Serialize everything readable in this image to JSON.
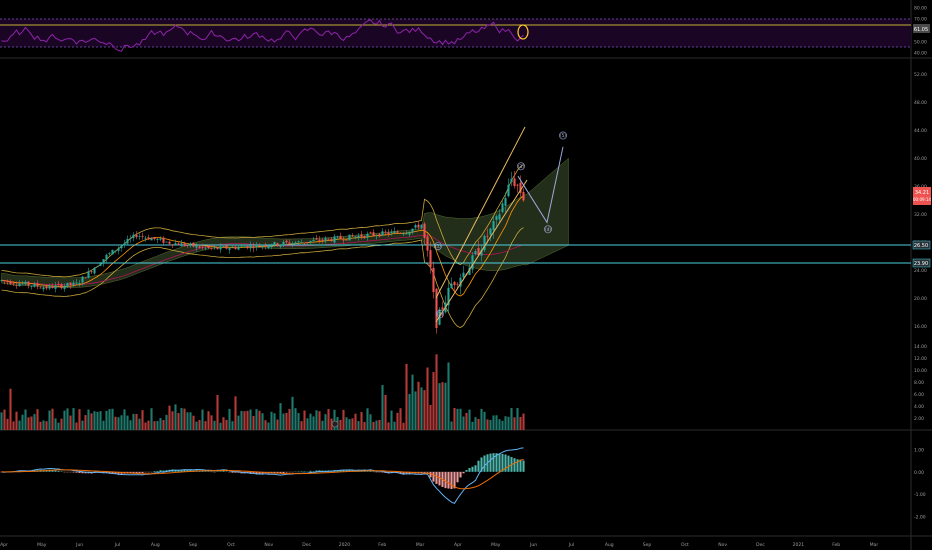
{
  "chart_data": {
    "type": "candlestick",
    "title": "",
    "colors": {
      "background": "#000000",
      "up": "#26a69a",
      "down": "#ef5350",
      "bollinger": "#c8a53a",
      "ichimoku_cloud": "#3a4a2a",
      "ma_fast": "#ff9800",
      "ma_slow": "#880e4f",
      "horizontal_line": "#4dd0e1",
      "rsi": "#8e24aa",
      "rsi_band": "#2a0a3a",
      "macd_line": "#64b5f6",
      "signal_line": "#ef6c00",
      "wave_path": "#9fa8da",
      "channel": "#e8b860",
      "scale_bg": "#000000",
      "last_price_bg": "#ef5350"
    },
    "x_labels": [
      "Apr",
      "May",
      "Jun",
      "Jul",
      "Aug",
      "Sep",
      "Oct",
      "Nov",
      "Dec",
      "2020",
      "Feb",
      "Mar",
      "Apr",
      "May",
      "Jun",
      "Jul",
      "Aug",
      "Sep",
      "Oct",
      "Nov",
      "Dec",
      "2021",
      "Feb",
      "Mar"
    ],
    "price_panel": {
      "y_ticks": [
        "52.00",
        "48.00",
        "44.00",
        "40.00",
        "36.00",
        "32.00",
        "28.00",
        "24.00",
        "20.00",
        "16.00"
      ],
      "ylim": [
        14,
        54
      ],
      "last_price_label": "34.21",
      "last_price_sub": "00:09:14",
      "hlines": [
        {
          "value": 26.5,
          "label": "26.50"
        },
        {
          "value": 23.9,
          "label": "23.90"
        }
      ],
      "wave_labels": [
        "(1)",
        "(2)",
        "(3)",
        "(4)",
        "(5)"
      ],
      "projection": [
        {
          "label": "(3)",
          "value": 37.4
        },
        {
          "label": "(4)",
          "value": 30.8
        },
        {
          "label": "(5)",
          "value": 41.6
        }
      ]
    },
    "rsi_panel": {
      "y_ticks": [
        "80.00",
        "70.00",
        "60.00",
        "50.00",
        "40.00"
      ],
      "ylim": [
        37,
        83
      ],
      "upper": 70,
      "lower": 30,
      "value_label": "61.05"
    },
    "volume_panel": {
      "y_ticks": [
        "14.00",
        "12.00",
        "10.00",
        "8.00",
        "6.00",
        "4.00",
        "2.00"
      ],
      "ylim": [
        0,
        15
      ]
    },
    "macd_panel": {
      "y_ticks": [
        "1.00",
        "0.00",
        "-1.00",
        "-2.00"
      ],
      "ylim": [
        -2.6,
        1.6
      ],
      "zero_label": "0.00"
    }
  }
}
